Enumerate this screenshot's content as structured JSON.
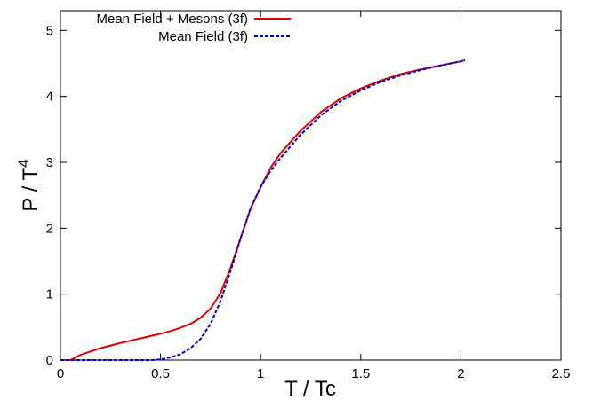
{
  "chart_data": {
    "type": "line",
    "xlabel": "T / Tc",
    "ylabel": "P / T",
    "ylabel_superscript": "4",
    "xlim": [
      0,
      2.5
    ],
    "ylim": [
      0,
      5.3
    ],
    "x_ticks": [
      0,
      0.5,
      1,
      1.5,
      2,
      2.5
    ],
    "x_tick_labels": [
      "0",
      "0.5",
      "1",
      "1.5",
      "2",
      "2.5"
    ],
    "y_ticks": [
      0,
      1,
      2,
      3,
      4,
      5
    ],
    "y_tick_labels": [
      "0",
      "1",
      "2",
      "3",
      "4",
      "5"
    ],
    "grid": false,
    "legend_position": "top-left",
    "series": [
      {
        "name": "Mean Field + Mesons (3f)",
        "color": "#e00000",
        "dash": "solid",
        "x": [
          0,
          0.05,
          0.1,
          0.2,
          0.3,
          0.4,
          0.5,
          0.55,
          0.6,
          0.65,
          0.7,
          0.75,
          0.8,
          0.85,
          0.9,
          0.95,
          1.0,
          1.05,
          1.1,
          1.2,
          1.3,
          1.4,
          1.5,
          1.6,
          1.7,
          1.8,
          1.9,
          2.0,
          2.02
        ],
        "values": [
          0,
          0.0,
          0.08,
          0.18,
          0.26,
          0.33,
          0.4,
          0.44,
          0.49,
          0.55,
          0.64,
          0.78,
          1.02,
          1.4,
          1.85,
          2.3,
          2.62,
          2.92,
          3.14,
          3.48,
          3.76,
          3.97,
          4.12,
          4.24,
          4.34,
          4.41,
          4.47,
          4.53,
          4.55
        ]
      },
      {
        "name": "Mean Field (3f)",
        "color": "#0000cc",
        "dash": "dashed",
        "x": [
          0,
          0.3,
          0.45,
          0.5,
          0.55,
          0.6,
          0.65,
          0.7,
          0.75,
          0.8,
          0.85,
          0.9,
          0.95,
          1.0,
          1.05,
          1.1,
          1.2,
          1.3,
          1.4,
          1.5,
          1.6,
          1.7,
          1.8,
          1.9,
          2.0,
          2.02
        ],
        "values": [
          0,
          0,
          0.0,
          0.01,
          0.04,
          0.09,
          0.18,
          0.32,
          0.55,
          0.9,
          1.35,
          1.85,
          2.3,
          2.63,
          2.87,
          3.07,
          3.42,
          3.71,
          3.93,
          4.09,
          4.22,
          4.32,
          4.4,
          4.47,
          4.53,
          4.55
        ]
      }
    ]
  }
}
